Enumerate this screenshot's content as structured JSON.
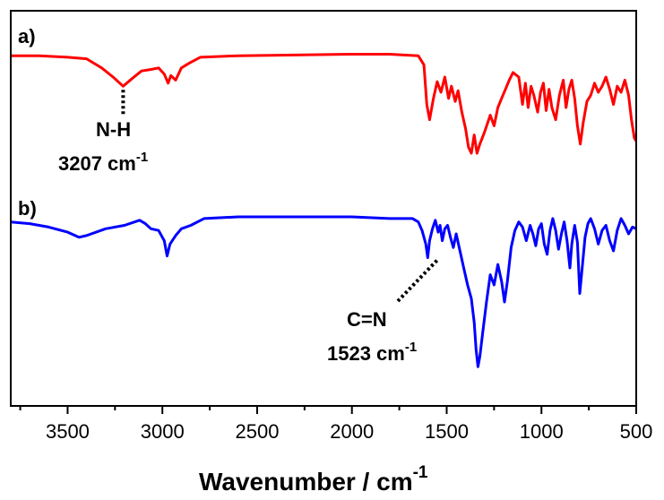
{
  "chart_data": {
    "type": "line",
    "xlabel": "Wavenumber / cm",
    "xlabel_sup": "-1",
    "xlim": [
      3800,
      500
    ],
    "x_reversed": true,
    "xticks": [
      3500,
      3000,
      2500,
      2000,
      1500,
      1000,
      500
    ],
    "y_ticks_shown": false,
    "grid": false,
    "series": [
      {
        "label": "a)",
        "color": "#ff0000",
        "points": [
          [
            3800,
            0.94
          ],
          [
            3650,
            0.94
          ],
          [
            3500,
            0.93
          ],
          [
            3400,
            0.92
          ],
          [
            3320,
            0.86
          ],
          [
            3260,
            0.8
          ],
          [
            3207,
            0.74
          ],
          [
            3160,
            0.79
          ],
          [
            3110,
            0.84
          ],
          [
            3060,
            0.85
          ],
          [
            3020,
            0.86
          ],
          [
            2990,
            0.82
          ],
          [
            2970,
            0.76
          ],
          [
            2955,
            0.81
          ],
          [
            2930,
            0.78
          ],
          [
            2900,
            0.86
          ],
          [
            2860,
            0.89
          ],
          [
            2800,
            0.93
          ],
          [
            2600,
            0.94
          ],
          [
            2000,
            0.95
          ],
          [
            1800,
            0.95
          ],
          [
            1650,
            0.94
          ],
          [
            1620,
            0.88
          ],
          [
            1605,
            0.62
          ],
          [
            1590,
            0.52
          ],
          [
            1570,
            0.66
          ],
          [
            1550,
            0.77
          ],
          [
            1530,
            0.7
          ],
          [
            1510,
            0.8
          ],
          [
            1490,
            0.66
          ],
          [
            1475,
            0.74
          ],
          [
            1455,
            0.64
          ],
          [
            1440,
            0.71
          ],
          [
            1420,
            0.57
          ],
          [
            1400,
            0.46
          ],
          [
            1385,
            0.34
          ],
          [
            1370,
            0.3
          ],
          [
            1355,
            0.42
          ],
          [
            1340,
            0.3
          ],
          [
            1325,
            0.36
          ],
          [
            1300,
            0.44
          ],
          [
            1270,
            0.55
          ],
          [
            1250,
            0.48
          ],
          [
            1230,
            0.6
          ],
          [
            1210,
            0.66
          ],
          [
            1190,
            0.72
          ],
          [
            1170,
            0.78
          ],
          [
            1150,
            0.83
          ],
          [
            1120,
            0.8
          ],
          [
            1100,
            0.62
          ],
          [
            1085,
            0.76
          ],
          [
            1070,
            0.6
          ],
          [
            1055,
            0.74
          ],
          [
            1040,
            0.68
          ],
          [
            1020,
            0.57
          ],
          [
            1005,
            0.7
          ],
          [
            990,
            0.76
          ],
          [
            975,
            0.58
          ],
          [
            960,
            0.72
          ],
          [
            945,
            0.6
          ],
          [
            925,
            0.52
          ],
          [
            905,
            0.68
          ],
          [
            885,
            0.78
          ],
          [
            870,
            0.6
          ],
          [
            855,
            0.72
          ],
          [
            840,
            0.78
          ],
          [
            825,
            0.66
          ],
          [
            810,
            0.48
          ],
          [
            795,
            0.36
          ],
          [
            780,
            0.5
          ],
          [
            760,
            0.64
          ],
          [
            740,
            0.68
          ],
          [
            720,
            0.76
          ],
          [
            700,
            0.7
          ],
          [
            680,
            0.74
          ],
          [
            660,
            0.8
          ],
          [
            640,
            0.72
          ],
          [
            620,
            0.62
          ],
          [
            600,
            0.74
          ],
          [
            580,
            0.7
          ],
          [
            560,
            0.78
          ],
          [
            540,
            0.68
          ],
          [
            525,
            0.52
          ],
          [
            510,
            0.4
          ],
          [
            500,
            0.38
          ]
        ]
      },
      {
        "label": "b)",
        "color": "#0000ff",
        "points": [
          [
            3800,
            0.97
          ],
          [
            3700,
            0.96
          ],
          [
            3600,
            0.94
          ],
          [
            3500,
            0.91
          ],
          [
            3440,
            0.88
          ],
          [
            3400,
            0.89
          ],
          [
            3300,
            0.93
          ],
          [
            3200,
            0.95
          ],
          [
            3120,
            0.98
          ],
          [
            3090,
            0.96
          ],
          [
            3060,
            0.93
          ],
          [
            3020,
            0.92
          ],
          [
            2990,
            0.86
          ],
          [
            2975,
            0.77
          ],
          [
            2960,
            0.84
          ],
          [
            2930,
            0.89
          ],
          [
            2900,
            0.93
          ],
          [
            2850,
            0.95
          ],
          [
            2780,
            0.99
          ],
          [
            2600,
            1.0
          ],
          [
            2000,
            1.0
          ],
          [
            1800,
            0.99
          ],
          [
            1680,
            0.99
          ],
          [
            1650,
            0.97
          ],
          [
            1630,
            0.92
          ],
          [
            1610,
            0.84
          ],
          [
            1600,
            0.76
          ],
          [
            1590,
            0.86
          ],
          [
            1575,
            0.93
          ],
          [
            1560,
            0.98
          ],
          [
            1545,
            0.91
          ],
          [
            1535,
            0.95
          ],
          [
            1523,
            0.86
          ],
          [
            1510,
            0.93
          ],
          [
            1495,
            0.95
          ],
          [
            1480,
            0.88
          ],
          [
            1465,
            0.82
          ],
          [
            1450,
            0.9
          ],
          [
            1430,
            0.8
          ],
          [
            1410,
            0.7
          ],
          [
            1390,
            0.6
          ],
          [
            1370,
            0.52
          ],
          [
            1355,
            0.38
          ],
          [
            1345,
            0.22
          ],
          [
            1335,
            0.12
          ],
          [
            1325,
            0.18
          ],
          [
            1310,
            0.32
          ],
          [
            1290,
            0.5
          ],
          [
            1270,
            0.66
          ],
          [
            1250,
            0.6
          ],
          [
            1230,
            0.72
          ],
          [
            1210,
            0.62
          ],
          [
            1195,
            0.5
          ],
          [
            1180,
            0.62
          ],
          [
            1160,
            0.82
          ],
          [
            1140,
            0.92
          ],
          [
            1120,
            0.97
          ],
          [
            1100,
            0.94
          ],
          [
            1080,
            0.86
          ],
          [
            1060,
            0.95
          ],
          [
            1045,
            0.9
          ],
          [
            1030,
            0.83
          ],
          [
            1015,
            0.93
          ],
          [
            1000,
            0.96
          ],
          [
            985,
            0.84
          ],
          [
            970,
            0.78
          ],
          [
            955,
            0.92
          ],
          [
            940,
            0.99
          ],
          [
            925,
            0.92
          ],
          [
            910,
            0.81
          ],
          [
            895,
            0.9
          ],
          [
            880,
            0.97
          ],
          [
            865,
            0.86
          ],
          [
            850,
            0.7
          ],
          [
            840,
            0.84
          ],
          [
            825,
            0.95
          ],
          [
            810,
            0.85
          ],
          [
            798,
            0.55
          ],
          [
            785,
            0.7
          ],
          [
            770,
            0.88
          ],
          [
            755,
            0.96
          ],
          [
            740,
            0.99
          ],
          [
            720,
            0.93
          ],
          [
            700,
            0.84
          ],
          [
            680,
            0.92
          ],
          [
            660,
            0.95
          ],
          [
            640,
            0.86
          ],
          [
            620,
            0.8
          ],
          [
            600,
            0.92
          ],
          [
            580,
            0.99
          ],
          [
            560,
            0.95
          ],
          [
            540,
            0.9
          ],
          [
            520,
            0.94
          ],
          [
            500,
            0.93
          ]
        ]
      }
    ],
    "annotations": [
      {
        "series": 0,
        "x": 3207,
        "label": "N-H",
        "value_text": "3207 cm",
        "value_sup": "-1"
      },
      {
        "series": 1,
        "x": 1523,
        "label": "C=N",
        "value_text": "1523 cm",
        "value_sup": "-1"
      }
    ]
  }
}
